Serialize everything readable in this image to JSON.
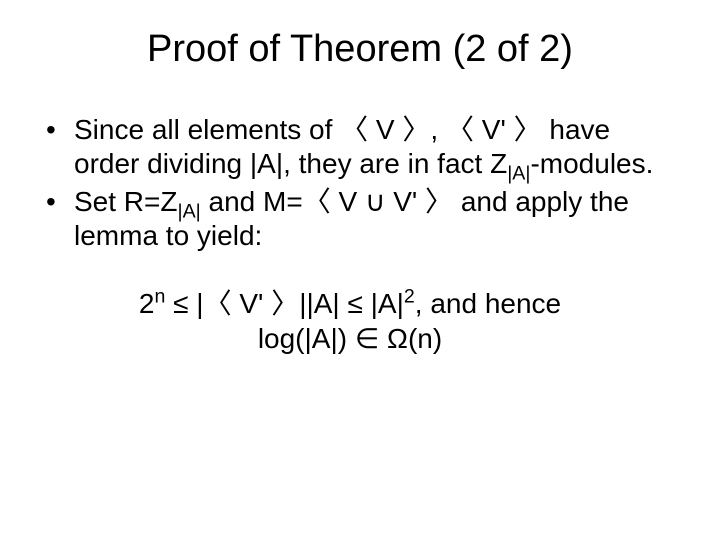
{
  "background_color": "#ffffff",
  "text_color": "#000000",
  "font_family": "Arial",
  "title": {
    "text": "Proof of Theorem (2 of 2)",
    "fontsize": 38,
    "align": "center"
  },
  "bullets": [
    {
      "pre": "Since all elements of ",
      "gen1_open": "〈",
      "gen1_body": " V ",
      "gen1_close": "〉",
      "sep": ", ",
      "gen2_open": "〈",
      "gen2_body": " V' ",
      "gen2_close": "〉",
      "mid": " have order dividing |A|, they are in fact Z",
      "sub1": "|A|",
      "tail": "-modules."
    },
    {
      "pre": "Set R=Z",
      "sub1": "|A|",
      "mid1": " and M=",
      "gen_open": "〈",
      "gen_body1": " V ",
      "cup": "∪",
      "gen_body2": " V' ",
      "gen_close": "〉",
      "tail": "  and apply the lemma to yield:"
    }
  ],
  "conclusion": {
    "line1": {
      "two": "2",
      "n": "n",
      "leq1": " ≤ |",
      "gen_open": "〈",
      "gen_body": " V' ",
      "gen_close": "〉",
      "mid": "||A| ≤ |A|",
      "sq": "2",
      "tail": ", and hence"
    },
    "line2": {
      "pre": "log(|A|) ",
      "in": "∈",
      "sp": " ",
      "omega": "Ω",
      "tail": "(n)"
    },
    "fontsize": 28
  }
}
